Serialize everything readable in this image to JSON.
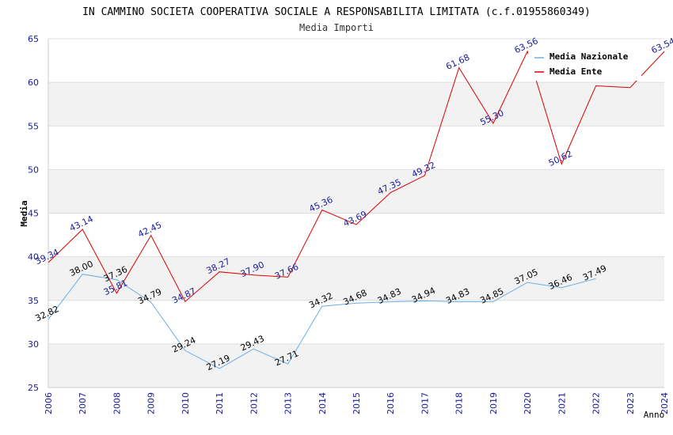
{
  "chart_data": {
    "type": "line",
    "title": "IN CAMMINO SOCIETA COOPERATIVA SOCIALE A RESPONSABILITA LIMITATA (c.f.01955860349)",
    "subtitle": "Media Importi",
    "xlabel": "Anno",
    "ylabel": "Media",
    "ylim": [
      25,
      65
    ],
    "yticks": [
      25,
      30,
      35,
      40,
      45,
      50,
      55,
      60,
      65
    ],
    "x": [
      "2006",
      "2007",
      "2008",
      "2009",
      "2010",
      "2011",
      "2012",
      "2013",
      "2014",
      "2015",
      "2016",
      "2017",
      "2018",
      "2019",
      "2020",
      "2021",
      "2022",
      "2023",
      "2024"
    ],
    "grid": true,
    "legend": "top-right",
    "series": [
      {
        "name": "Media Nazionale",
        "color": "#6aaee6",
        "label_color": "#000000",
        "values": [
          32.82,
          38.0,
          37.36,
          34.79,
          29.24,
          27.19,
          29.43,
          27.71,
          34.32,
          34.68,
          34.83,
          34.94,
          34.83,
          34.85,
          37.05,
          36.46,
          37.49,
          null,
          null
        ],
        "labels": [
          "32.82",
          "38.00",
          "37.36",
          "34.79",
          "29.24",
          "27.19",
          "29.43",
          "27.71",
          "34.32",
          "34.68",
          "34.83",
          "34.94",
          "34.83",
          "34.85",
          "37.05",
          "36.46",
          "37.49",
          "",
          ""
        ]
      },
      {
        "name": "Media Ente",
        "color": "#dd0000",
        "label_color": "#1a1a99",
        "values": [
          39.34,
          43.14,
          35.81,
          42.45,
          34.87,
          38.27,
          37.9,
          37.66,
          45.36,
          43.69,
          47.35,
          49.32,
          61.68,
          55.3,
          63.56,
          50.62,
          59.6,
          59.4,
          63.54
        ],
        "labels": [
          "39.34",
          "43.14",
          "35.81",
          "42.45",
          "34.87",
          "38.27",
          "37.90",
          "37.66",
          "45.36",
          "43.69",
          "47.35",
          "49.32",
          "61.68",
          "55.30",
          "63.56",
          "50.62",
          "",
          "",
          "63.54"
        ]
      }
    ]
  }
}
